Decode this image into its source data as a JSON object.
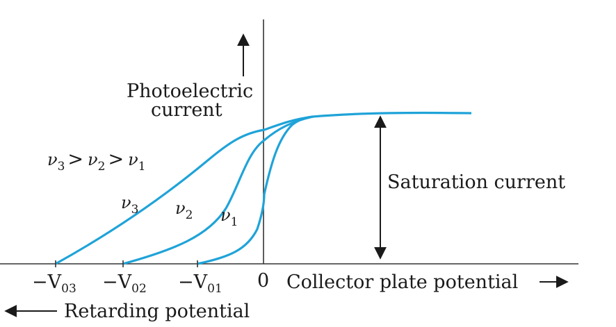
{
  "labels": {
    "y_axis_line1": "Photoelectric",
    "y_axis_line2": "current",
    "x_axis": "Collector plate potential",
    "retarding": "Retarding potential",
    "saturation": "Saturation current",
    "origin": "0",
    "relation": {
      "nu": "ν",
      "s3": "3",
      "s2": "2",
      "s1": "1",
      "gt": ">"
    },
    "ticks": [
      {
        "prefix": "−V",
        "sub": "03"
      },
      {
        "prefix": "−V",
        "sub": "02"
      },
      {
        "prefix": "−V",
        "sub": "01"
      }
    ],
    "curves": [
      {
        "symbol": "ν",
        "sub": "3"
      },
      {
        "symbol": "ν",
        "sub": "2"
      },
      {
        "symbol": "ν",
        "sub": "1"
      }
    ]
  },
  "colors": {
    "curve": "#1fa3d8",
    "axis": "#333333",
    "text": "#1a1a1a"
  }
}
